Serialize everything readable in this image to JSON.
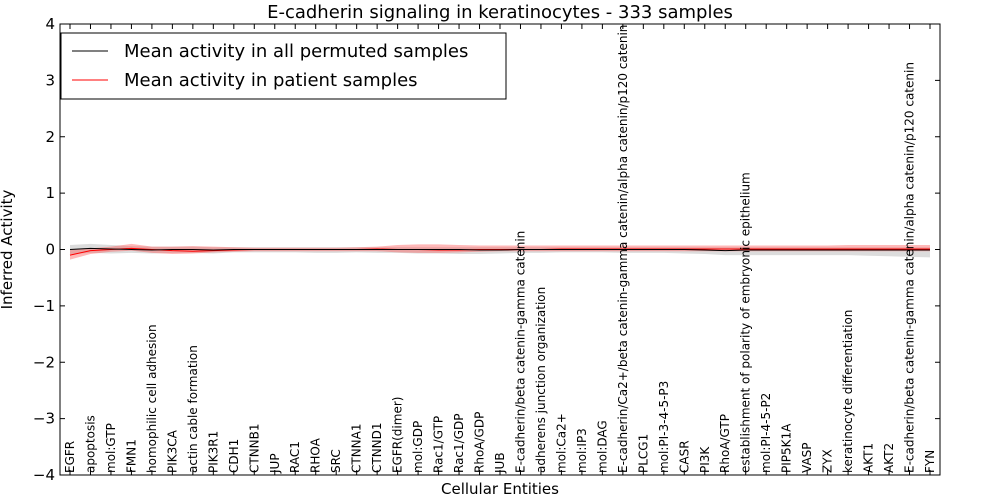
{
  "chart_data": {
    "type": "line",
    "title": "E-cadherin signaling in keratinocytes - 333 samples",
    "xlabel": "Cellular Entities",
    "ylabel": "Inferred Activity",
    "ylim": [
      -4,
      4
    ],
    "yticks": [
      "−4",
      "−3",
      "−2",
      "−1",
      "0",
      "1",
      "2",
      "3",
      "4"
    ],
    "grid": false,
    "legend_position": "top-left",
    "categories": [
      "EGFR",
      "apoptosis",
      "mol:GTP",
      "FMN1",
      "homophilic cell adhesion",
      "PIK3CA",
      "actin cable formation",
      "PIK3R1",
      "CDH1",
      "CTNNB1",
      "JUP",
      "RAC1",
      "RHOA",
      "SRC",
      "CTNNA1",
      "CTNND1",
      "EGFR(dimer)",
      "mol:GDP",
      "Rac1/GTP",
      "Rac1/GDP",
      "RhoA/GDP",
      "JUB",
      "E-cadherin/beta catenin-gamma catenin",
      "adherens junction organization",
      "mol:Ca2+",
      "mol:IP3",
      "mol:DAG",
      "E-cadherin/Ca2+/beta catenin-gamma catenin/alpha catenin/p120 catenin",
      "PLCG1",
      "mol:PI-3-4-5-P3",
      "CASR",
      "PI3K",
      "RhoA/GTP",
      "establishment of polarity of embryonic epithelium",
      "mol:PI-4-5-P2",
      "PIP5K1A",
      "VASP",
      "ZYX",
      "keratinocyte differentiation",
      "AKT1",
      "AKT2",
      "E-cadherin/beta catenin-gamma catenin/alpha catenin/p120 catenin",
      "FYN"
    ],
    "series": [
      {
        "name": "Mean activity in all permuted samples",
        "color": "#000000",
        "values": [
          0.0,
          0.02,
          0.01,
          0.0,
          -0.01,
          0.0,
          0.0,
          -0.01,
          0.0,
          0.0,
          0.0,
          0.0,
          0.0,
          0.0,
          0.0,
          0.0,
          0.0,
          0.0,
          0.0,
          0.0,
          -0.01,
          -0.01,
          0.0,
          0.0,
          0.0,
          0.0,
          0.0,
          0.0,
          0.0,
          0.0,
          0.0,
          -0.01,
          -0.02,
          -0.01,
          -0.01,
          -0.01,
          -0.01,
          -0.01,
          -0.01,
          -0.01,
          -0.01,
          -0.01,
          -0.01
        ],
        "band_low": [
          -0.08,
          -0.06,
          -0.07,
          -0.06,
          -0.07,
          -0.06,
          -0.06,
          -0.07,
          -0.05,
          -0.05,
          -0.05,
          -0.05,
          -0.06,
          -0.06,
          -0.05,
          -0.06,
          -0.06,
          -0.07,
          -0.07,
          -0.08,
          -0.08,
          -0.07,
          -0.06,
          -0.06,
          -0.05,
          -0.05,
          -0.05,
          -0.06,
          -0.06,
          -0.06,
          -0.07,
          -0.08,
          -0.1,
          -0.1,
          -0.1,
          -0.1,
          -0.1,
          -0.1,
          -0.1,
          -0.11,
          -0.12,
          -0.13,
          -0.14
        ],
        "band_high": [
          0.08,
          0.1,
          0.08,
          0.06,
          0.05,
          0.05,
          0.05,
          0.04,
          0.04,
          0.04,
          0.04,
          0.04,
          0.04,
          0.04,
          0.04,
          0.04,
          0.04,
          0.04,
          0.04,
          0.04,
          0.04,
          0.04,
          0.04,
          0.04,
          0.04,
          0.04,
          0.04,
          0.04,
          0.04,
          0.04,
          0.04,
          0.04,
          0.04,
          0.04,
          0.04,
          0.04,
          0.04,
          0.04,
          0.04,
          0.04,
          0.04,
          0.04,
          0.04
        ]
      },
      {
        "name": "Mean activity in patient samples",
        "color": "#ff0000",
        "values": [
          -0.1,
          -0.02,
          0.0,
          0.02,
          0.0,
          -0.02,
          -0.03,
          -0.02,
          -0.01,
          0.0,
          0.0,
          0.0,
          0.0,
          0.0,
          0.0,
          0.01,
          0.0,
          0.0,
          -0.01,
          -0.01,
          0.0,
          0.0,
          0.0,
          0.0,
          0.01,
          0.01,
          0.01,
          0.01,
          0.01,
          0.01,
          0.01,
          0.01,
          0.01,
          0.01,
          0.01,
          0.01,
          0.01,
          0.01,
          0.01,
          0.01,
          0.01,
          0.01,
          0.01
        ],
        "band_low": [
          -0.18,
          -0.08,
          -0.04,
          -0.02,
          -0.06,
          -0.08,
          -0.07,
          -0.05,
          -0.04,
          -0.03,
          -0.03,
          -0.03,
          -0.03,
          -0.03,
          -0.03,
          -0.03,
          -0.05,
          -0.06,
          -0.06,
          -0.05,
          -0.04,
          -0.03,
          -0.03,
          -0.03,
          -0.03,
          -0.03,
          -0.03,
          -0.03,
          -0.03,
          -0.03,
          -0.03,
          -0.03,
          -0.03,
          -0.03,
          -0.03,
          -0.03,
          -0.03,
          -0.03,
          -0.03,
          -0.03,
          -0.03,
          -0.03,
          -0.03
        ],
        "band_high": [
          0.0,
          0.02,
          0.05,
          0.1,
          0.05,
          0.05,
          0.06,
          0.05,
          0.04,
          0.03,
          0.03,
          0.03,
          0.03,
          0.03,
          0.04,
          0.05,
          0.08,
          0.09,
          0.09,
          0.08,
          0.07,
          0.07,
          0.07,
          0.07,
          0.07,
          0.07,
          0.07,
          0.07,
          0.07,
          0.07,
          0.07,
          0.07,
          0.07,
          0.07,
          0.07,
          0.07,
          0.07,
          0.07,
          0.08,
          0.08,
          0.08,
          0.08,
          0.08
        ]
      }
    ]
  }
}
